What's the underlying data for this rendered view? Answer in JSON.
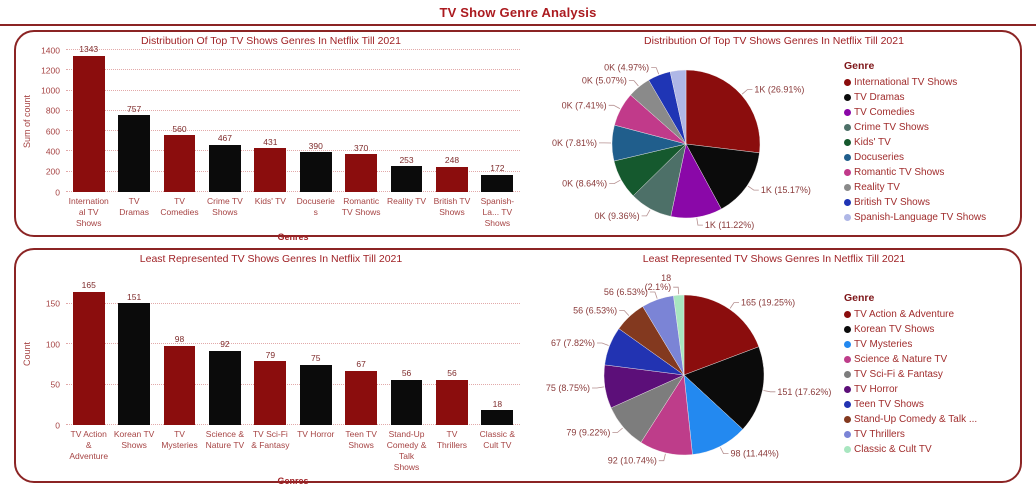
{
  "page": {
    "title": "TV Show Genre Analysis"
  },
  "theme": {
    "background": "#FFFFFF",
    "border": "#8B2424",
    "title": "#AB1A1F",
    "chartTitle": "#A02226",
    "axis": "#A64444",
    "dataLabel": "#7E2B2B",
    "pieLabel": "#8A3B3B",
    "legendText": "#A12D2D",
    "legendTitle": "#7E1518",
    "grid": "#E2A9A9",
    "bar_dark_red": "#8B0D0D",
    "bar_black": "#0B0B0B"
  },
  "chart_data": [
    {
      "type": "bar",
      "title": "Distribution Of Top TV Shows Genres In Netflix Till 2021",
      "xlabel": "Genres",
      "ylabel": "Sum of count",
      "ylim": [
        0,
        1400
      ],
      "yticks": [
        0,
        200,
        400,
        600,
        800,
        1000,
        1200,
        1400
      ],
      "grid": "dotted-horizontal",
      "categories": [
        "International TV Shows",
        "TV Dramas",
        "TV Comedies",
        "Crime TV Shows",
        "Kids' TV",
        "Docuseries",
        "Romantic TV Shows",
        "Reality TV",
        "British TV Shows",
        "Spanish-La... TV Shows"
      ],
      "values": [
        1343,
        757,
        560,
        467,
        431,
        390,
        370,
        253,
        248,
        172
      ],
      "bar_colors": [
        "#8B0D0D",
        "#0B0B0B",
        "#8B0D0D",
        "#0B0B0B",
        "#8B0D0D",
        "#0B0B0B",
        "#8B0D0D",
        "#0B0B0B",
        "#8B0D0D",
        "#0B0B0B"
      ]
    },
    {
      "type": "pie",
      "title": "Distribution Of Top TV Shows Genres In Netflix Till 2021",
      "legend_title": "Genre",
      "legend_position": "right",
      "slices": [
        {
          "label": "International TV Shows",
          "pct": 26.91,
          "display": "1K (26.91%)",
          "color": "#8B0D0D"
        },
        {
          "label": "TV Dramas",
          "pct": 15.17,
          "display": "1K (15.17%)",
          "color": "#0B0B0B"
        },
        {
          "label": "TV Comedies",
          "pct": 11.22,
          "display": "1K (11.22%)",
          "color": "#8A08A8"
        },
        {
          "label": "Crime TV Shows",
          "pct": 9.36,
          "display": "0K (9.36%)",
          "color": "#4D7068"
        },
        {
          "label": "Kids' TV",
          "pct": 8.64,
          "display": "0K (8.64%)",
          "color": "#15592E"
        },
        {
          "label": "Docuseries",
          "pct": 7.81,
          "display": "0K (7.81%)",
          "color": "#205E8C"
        },
        {
          "label": "Romantic TV Shows",
          "pct": 7.41,
          "display": "0K (7.41%)",
          "color": "#C13A8A"
        },
        {
          "label": "Reality TV",
          "pct": 5.07,
          "display": "0K (5.07%)",
          "color": "#8A8A8A"
        },
        {
          "label": "British TV Shows",
          "pct": 4.97,
          "display": "0K (4.97%)",
          "color": "#1F35B5"
        },
        {
          "label": "Spanish-Language TV Shows",
          "pct": 3.44,
          "display": "",
          "color": "#AFB7E6"
        }
      ]
    },
    {
      "type": "bar",
      "title": "Least Represented TV Shows Genres In Netflix Till 2021",
      "xlabel": "Genres",
      "ylabel": "Count",
      "ylim": [
        0,
        176
      ],
      "yticks": [
        0,
        50,
        100,
        150
      ],
      "grid": "dotted-horizontal",
      "categories": [
        "TV Action & Adventure",
        "Korean TV Shows",
        "TV Mysteries",
        "Science & Nature TV",
        "TV Sci-Fi & Fantasy",
        "TV Horror",
        "Teen TV Shows",
        "Stand-Up Comedy & Talk Shows",
        "TV Thrillers",
        "Classic & Cult TV"
      ],
      "values": [
        165,
        151,
        98,
        92,
        79,
        75,
        67,
        56,
        56,
        18
      ],
      "bar_colors": [
        "#8B0D0D",
        "#0B0B0B",
        "#8B0D0D",
        "#0B0B0B",
        "#8B0D0D",
        "#0B0B0B",
        "#8B0D0D",
        "#0B0B0B",
        "#8B0D0D",
        "#0B0B0B"
      ]
    },
    {
      "type": "pie",
      "title": "Least Represented TV Shows Genres In Netflix Till 2021",
      "legend_title": "Genre",
      "legend_position": "right",
      "slices": [
        {
          "label": "TV Action & Adventure",
          "pct": 19.25,
          "display": "165 (19.25%)",
          "color": "#8B0D0D"
        },
        {
          "label": "Korean TV Shows",
          "pct": 17.62,
          "display": "151 (17.62%)",
          "color": "#0B0B0B"
        },
        {
          "label": "TV Mysteries",
          "pct": 11.44,
          "display": "98 (11.44%)",
          "color": "#2389F0"
        },
        {
          "label": "Science & Nature TV",
          "pct": 10.74,
          "display": "92 (10.74%)",
          "color": "#BE3D8A"
        },
        {
          "label": "TV Sci-Fi & Fantasy",
          "pct": 9.22,
          "display": "79 (9.22%)",
          "color": "#7D7D7D"
        },
        {
          "label": "TV Horror",
          "pct": 8.75,
          "display": "75 (8.75%)",
          "color": "#5C0F79"
        },
        {
          "label": "Teen TV Shows",
          "pct": 7.82,
          "display": "67 (7.82%)",
          "color": "#2233B2"
        },
        {
          "label": "Stand-Up Comedy & Talk Shows",
          "legend": "Stand-Up Comedy & Talk ...",
          "pct": 6.53,
          "display": "56 (6.53%)",
          "color": "#83391F"
        },
        {
          "label": "TV Thrillers",
          "pct": 6.53,
          "display": "56 (6.53%)",
          "color": "#7B84D6"
        },
        {
          "label": "Classic & Cult TV",
          "pct": 2.1,
          "display": [
            "18",
            "(2.1%)"
          ],
          "color": "#A8E6C0"
        }
      ]
    }
  ]
}
